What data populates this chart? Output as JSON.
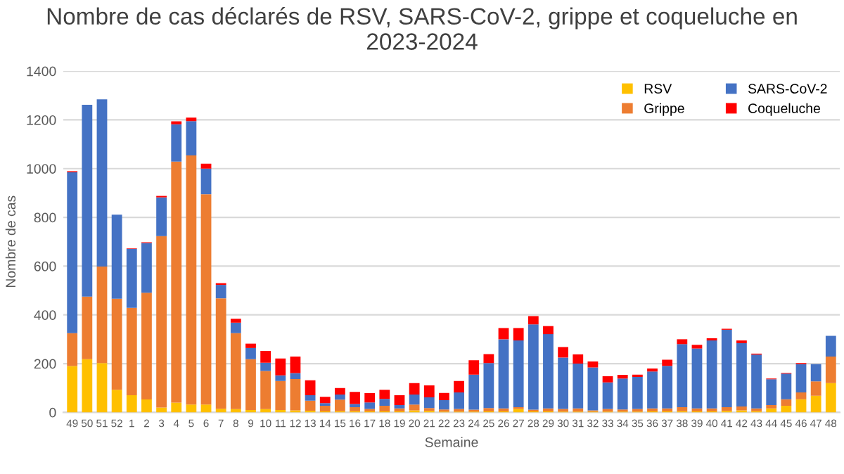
{
  "chart_data": {
    "type": "bar",
    "stacked": true,
    "title": "Nombre de cas déclarés de RSV, SARS-CoV-2, grippe et coqueluche en 2023-2024",
    "xlabel": "Semaine",
    "ylabel": "Nombre de cas",
    "categories": [
      "49",
      "50",
      "51",
      "52",
      "1",
      "2",
      "3",
      "4",
      "5",
      "6",
      "7",
      "8",
      "9",
      "10",
      "11",
      "12",
      "13",
      "14",
      "15",
      "16",
      "17",
      "18",
      "19",
      "20",
      "21",
      "22",
      "23",
      "24",
      "25",
      "26",
      "27",
      "28",
      "29",
      "30",
      "31",
      "32",
      "33",
      "34",
      "35",
      "36",
      "37",
      "38",
      "39",
      "40",
      "41",
      "42",
      "43",
      "44",
      "45",
      "46",
      "47",
      "48"
    ],
    "series": [
      {
        "name": "RSV",
        "color": "#ffc000",
        "values": [
          190,
          218,
          202,
          93,
          70,
          53,
          20,
          40,
          32,
          32,
          15,
          13,
          10,
          13,
          10,
          8,
          7,
          4,
          5,
          5,
          4,
          4,
          4,
          8,
          6,
          3,
          3,
          3,
          4,
          4,
          14,
          4,
          4,
          3,
          3,
          3,
          3,
          3,
          3,
          4,
          4,
          5,
          4,
          4,
          6,
          8,
          5,
          16,
          27,
          54,
          68,
          120
        ]
      },
      {
        "name": "Grippe",
        "color": "#ed7d31",
        "values": [
          135,
          257,
          396,
          373,
          359,
          438,
          703,
          989,
          1022,
          863,
          453,
          312,
          208,
          157,
          119,
          129,
          41,
          23,
          47,
          16,
          10,
          23,
          12,
          24,
          12,
          9,
          11,
          8,
          14,
          12,
          7,
          7,
          12,
          11,
          13,
          5,
          11,
          9,
          11,
          12,
          12,
          16,
          12,
          12,
          15,
          16,
          11,
          14,
          27,
          28,
          59,
          109
        ]
      },
      {
        "name": "SARS-CoV-2",
        "color": "#4472c4",
        "values": [
          660,
          787,
          686,
          345,
          242,
          204,
          159,
          153,
          141,
          105,
          55,
          43,
          46,
          34,
          23,
          24,
          22,
          11,
          21,
          13,
          27,
          28,
          14,
          41,
          44,
          38,
          68,
          144,
          184,
          284,
          274,
          350,
          305,
          211,
          184,
          176,
          109,
          127,
          131,
          152,
          175,
          259,
          246,
          279,
          318,
          260,
          221,
          106,
          105,
          116,
          71,
          85
        ]
      },
      {
        "name": "Coqueluche",
        "color": "#ff0000",
        "values": [
          4,
          0,
          0,
          0,
          2,
          3,
          6,
          12,
          14,
          20,
          7,
          16,
          18,
          48,
          69,
          68,
          62,
          26,
          27,
          50,
          38,
          38,
          40,
          47,
          49,
          30,
          47,
          59,
          37,
          46,
          51,
          34,
          33,
          43,
          38,
          25,
          25,
          15,
          10,
          12,
          25,
          20,
          15,
          9,
          4,
          11,
          4,
          3,
          3,
          4,
          0,
          0
        ]
      }
    ],
    "ylim": [
      0,
      1400
    ],
    "yticks": [
      0,
      200,
      400,
      600,
      800,
      1000,
      1200,
      1400
    ],
    "grid": "y",
    "legend": "top right"
  }
}
